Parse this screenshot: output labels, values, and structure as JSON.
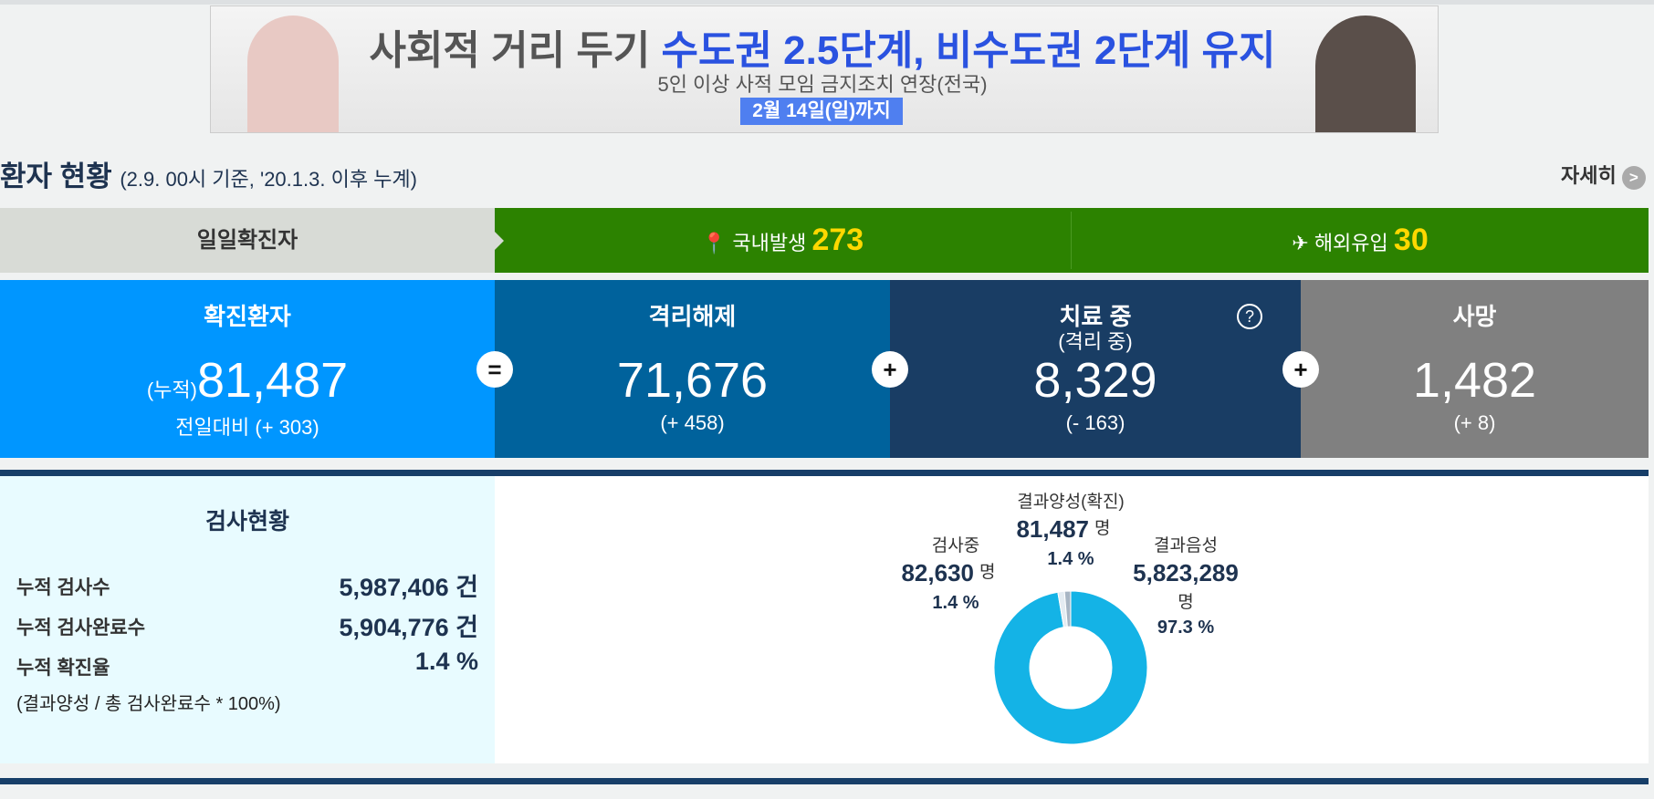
{
  "banner": {
    "title_part1": "사회적 거리 두기",
    "title_part2": "수도권 2.5단계, 비수도권 2단계 유지",
    "subtitle": "5인 이상 사적 모임 금지조치 연장(전국)",
    "date": "2월 14일(일)까지"
  },
  "header": {
    "title": "환자 현황",
    "note": "(2.9. 00시 기준, '20.1.3. 이후 누계)",
    "more": "자세히",
    "more_icon": ">"
  },
  "daily": {
    "label": "일일확진자",
    "domestic": {
      "label": "국내발생",
      "value": "273"
    },
    "overseas": {
      "label": "해외유입",
      "value": "30"
    }
  },
  "summary": [
    {
      "title": "확진환자",
      "prefix": "(누적)",
      "value": "81,487",
      "change": "전일대비 (+ 303)"
    },
    {
      "title": "격리해제",
      "value": "71,676",
      "change": "(+ 458)"
    },
    {
      "title": "치료 중",
      "subtitle": "(격리 중)",
      "help": "?",
      "value": "8,329",
      "change": "(- 163)"
    },
    {
      "title": "사망",
      "value": "1,482",
      "change": "(+ 8)"
    }
  ],
  "operators": [
    "=",
    "+",
    "+"
  ],
  "tests": {
    "title": "검사현황",
    "rows": [
      {
        "label": "누적 검사수",
        "value": "5,987,406",
        "unit": "건"
      },
      {
        "label": "누적 검사완료수",
        "value": "5,904,776",
        "unit": "건"
      },
      {
        "label": "누적 확진율",
        "value": "1.4",
        "unit": "%"
      }
    ],
    "note": "(결과양성 / 총 검사완료수 * 100%)"
  },
  "donut": {
    "segments": [
      {
        "label": "결과음성",
        "value": "5,823,289",
        "unit": "명",
        "percent": 97.3,
        "percent_label": "97.3 %",
        "color": "#14b3e6"
      },
      {
        "label": "결과양성(확진)",
        "value": "81,487",
        "unit": "명",
        "percent": 1.4,
        "percent_label": "1.4 %",
        "color": "#e4ecf2"
      },
      {
        "label": "검사중",
        "value": "82,630",
        "unit": "명",
        "percent": 1.4,
        "percent_label": "1.4 %",
        "color": "#a8b6c4"
      }
    ]
  }
}
